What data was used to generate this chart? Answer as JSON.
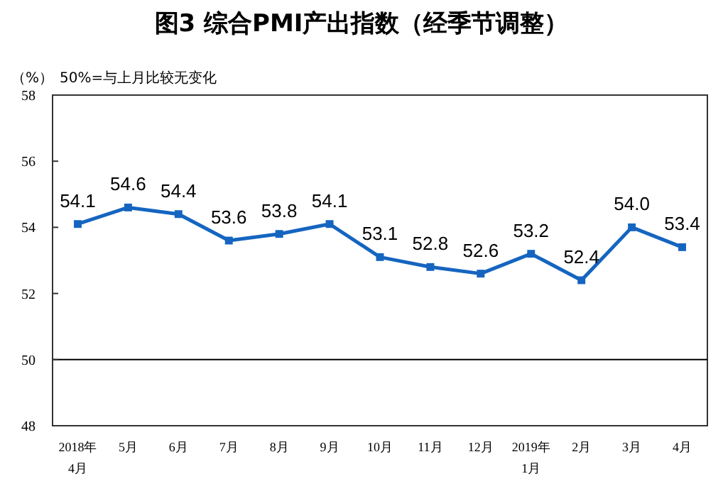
{
  "chart_data": {
    "type": "line",
    "title": "图3 综合PMI产出指数（经季节调整）",
    "ylabel": "（%）",
    "annotations": [
      "50%=与上月比较无变化"
    ],
    "categories": [
      "2018年\n4月",
      "5月",
      "6月",
      "7月",
      "8月",
      "9月",
      "10月",
      "11月",
      "12月",
      "2019年\n1月",
      "2月",
      "3月",
      "4月"
    ],
    "series": [
      {
        "color": "#1565c0",
        "values": [
          54.1,
          54.6,
          54.4,
          53.6,
          53.8,
          54.1,
          53.1,
          52.8,
          52.6,
          53.2,
          52.4,
          54.0,
          53.4
        ],
        "value_labels": [
          "54.1",
          "54.6",
          "54.4",
          "53.6",
          "53.8",
          "54.1",
          "53.1",
          "52.8",
          "52.6",
          "53.2",
          "52.4",
          "54.0",
          "53.4"
        ]
      }
    ],
    "ylim": [
      48,
      58
    ],
    "yticks": [
      48,
      50,
      52,
      54,
      56,
      58
    ],
    "ref_lines": [
      {
        "axis": "y",
        "value": 50,
        "color": "#000000"
      }
    ],
    "marker": "square",
    "grid": false
  }
}
